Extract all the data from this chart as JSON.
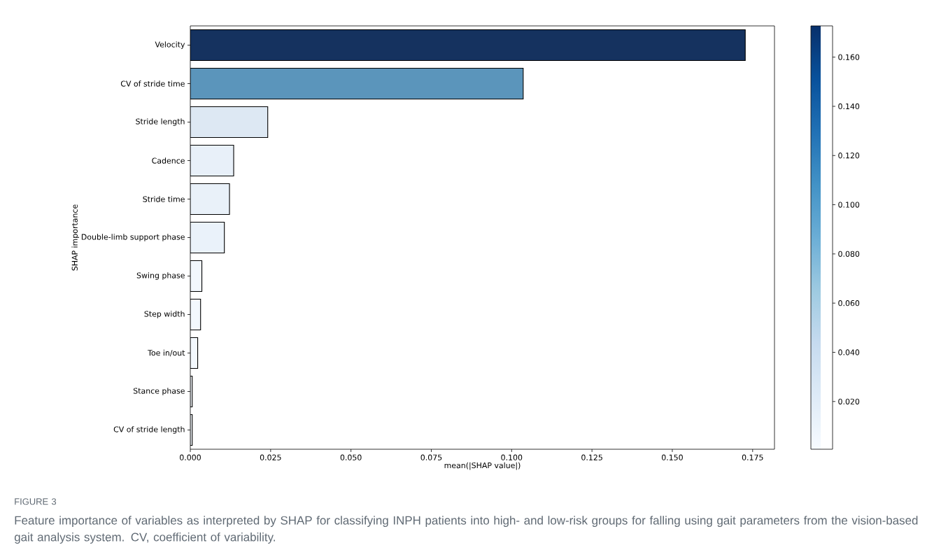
{
  "chart_data": {
    "type": "bar",
    "orientation": "horizontal",
    "xlabel": "mean(|SHAP value|)",
    "ylabel": "SHAP importance",
    "categories": [
      "Velocity",
      "CV of stride time",
      "Stride length",
      "Cadence",
      "Stride time",
      "Double-limb support phase",
      "Swing phase",
      "Step width",
      "Toe in/out",
      "Stance phase",
      "CV of stride length"
    ],
    "values": [
      0.1727,
      0.1036,
      0.0241,
      0.0135,
      0.0122,
      0.0106,
      0.0036,
      0.0032,
      0.0023,
      0.0006,
      0.0006
    ],
    "colors": [
      "#15325f",
      "#5b95bb",
      "#dde8f3",
      "#e8f0f9",
      "#e9f1f9",
      "#eaf2fa",
      "#f2f7fd",
      "#f3f8fd",
      "#f3f8fd",
      "#f6faff",
      "#f6faff"
    ],
    "xlim": [
      0,
      0.1818
    ],
    "xticks": [
      {
        "value": 0,
        "label": "0.000"
      },
      {
        "value": 0.025,
        "label": "0.025"
      },
      {
        "value": 0.05,
        "label": "0.050"
      },
      {
        "value": 0.075,
        "label": "0.075"
      },
      {
        "value": 0.1,
        "label": "0.100"
      },
      {
        "value": 0.125,
        "label": "0.125"
      },
      {
        "value": 0.15,
        "label": "0.150"
      },
      {
        "value": 0.175,
        "label": "0.175"
      }
    ],
    "clim": [
      0.0006,
      0.1727
    ],
    "cticks": [
      {
        "value": 0.02,
        "label": "0.020"
      },
      {
        "value": 0.04,
        "label": "0.040"
      },
      {
        "value": 0.06,
        "label": "0.060"
      },
      {
        "value": 0.08,
        "label": "0.080"
      },
      {
        "value": 0.1,
        "label": "0.100"
      },
      {
        "value": 0.12,
        "label": "0.120"
      },
      {
        "value": 0.14,
        "label": "0.140"
      },
      {
        "value": 0.16,
        "label": "0.160"
      }
    ],
    "annotations": [
      "FIGURE 3",
      "Feature importance of variables as interpreted by SHAP for classifying INPH patients into high- and low-risk groups for falling using gait parameters from the vision-based gait analysis system. CV, coefficient of variability."
    ]
  }
}
